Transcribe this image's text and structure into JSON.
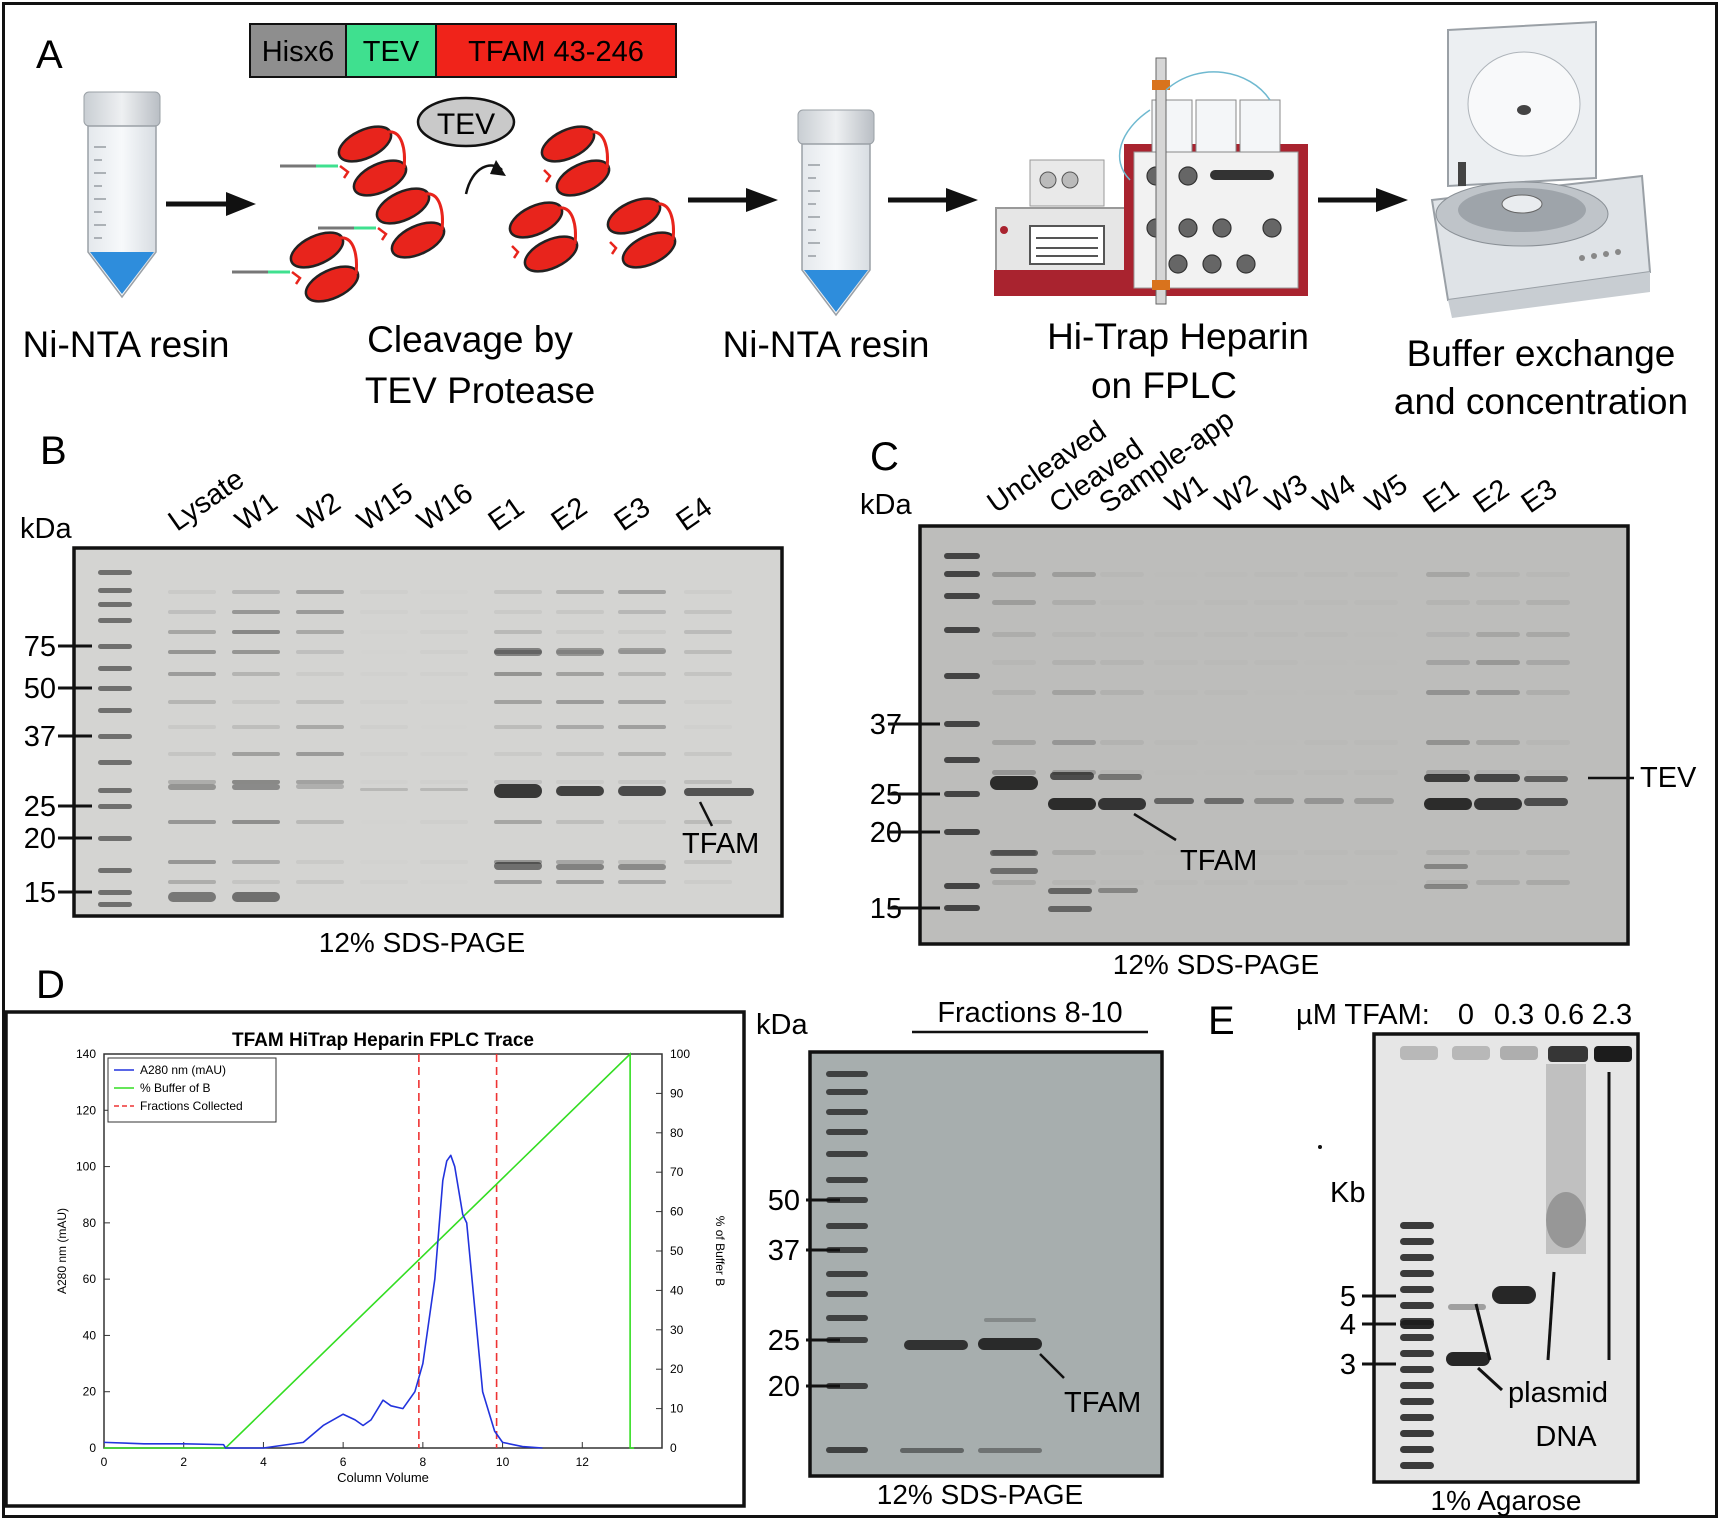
{
  "panels": {
    "a": "A",
    "b": "B",
    "c": "C",
    "d": "D",
    "e": "E"
  },
  "construct": {
    "his": "Hisx6",
    "tev": "TEV",
    "tfam": "TFAM 43-246",
    "colors": {
      "his": "#8e8e8e",
      "tev": "#3fe08f",
      "tfam": "#f0231a"
    }
  },
  "workflow": {
    "tev_bubble": "TEV",
    "steps": {
      "s1": "Ni-NTA resin",
      "s2a": "Cleavage by",
      "s2b": "TEV Protease",
      "s3": "Ni-NTA resin",
      "s4a": "Hi-Trap Heparin",
      "s4b": "on FPLC",
      "s5a": "Buffer exchange",
      "s5b": "and concentration"
    }
  },
  "gel_b": {
    "unit": "kDa",
    "lanes": [
      "Lysate",
      "W1",
      "W2",
      "W15",
      "W16",
      "E1",
      "E2",
      "E3",
      "E4"
    ],
    "markers": [
      "75",
      "50",
      "37",
      "25",
      "20",
      "15"
    ],
    "band": "TFAM",
    "caption": "12% SDS-PAGE"
  },
  "gel_c": {
    "unit": "kDa",
    "lanes": [
      "Uncleaved",
      "Cleaved",
      "Sample-app",
      "W1",
      "W2",
      "W3",
      "W4",
      "W5",
      "E1",
      "E2",
      "E3"
    ],
    "markers": [
      "37",
      "25",
      "20",
      "15"
    ],
    "band_tfam": "TFAM",
    "band_tev": "TEV",
    "caption": "12% SDS-PAGE"
  },
  "gel_d": {
    "unit": "kDa",
    "header": "Fractions 8-10",
    "markers": [
      "50",
      "37",
      "25",
      "20"
    ],
    "band": "TFAM",
    "caption": "12% SDS-PAGE"
  },
  "gel_e": {
    "conc_label": "µM TFAM:",
    "concs": [
      "0",
      "0.3",
      "0.6",
      "2.3"
    ],
    "unit": "Kb",
    "markers": [
      "5",
      "4",
      "3"
    ],
    "label_a": "plasmid",
    "label_b": "DNA",
    "caption": "1% Agarose"
  },
  "chart_data": {
    "type": "line",
    "title": "TFAM HiTrap Heparin FPLC Trace",
    "xlabel": "Column Volume",
    "ylabel_left": "A280 nm (mAU)",
    "ylabel_right": "% of Buffer B",
    "xlim": [
      0,
      14
    ],
    "ylim_left": [
      0,
      140
    ],
    "ylim_right": [
      0,
      100
    ],
    "xticks": [
      "0",
      "2",
      "4",
      "6",
      "8",
      "10",
      "12"
    ],
    "yticks_left": [
      "0",
      "20",
      "40",
      "60",
      "80",
      "100",
      "120",
      "140"
    ],
    "yticks_right": [
      "0",
      "10",
      "20",
      "30",
      "40",
      "50",
      "60",
      "70",
      "80",
      "90",
      "100"
    ],
    "legend": {
      "placement": "top-left",
      "entries": [
        "A280 nm (mAU)",
        "% Buffer of B",
        "Fractions Collected"
      ]
    },
    "colors": {
      "a280": "#2233dd",
      "buffer": "#33dd22",
      "fractions": "#ee3333"
    },
    "series": [
      {
        "name": "A280 nm (mAU)",
        "axis": "left",
        "x": [
          0,
          1,
          2,
          3,
          3.05,
          4,
          5,
          5.5,
          6,
          6.3,
          6.5,
          6.7,
          7,
          7.2,
          7.5,
          7.8,
          8,
          8.3,
          8.5,
          8.6,
          8.7,
          8.8,
          9,
          9.1,
          9.3,
          9.5,
          9.8,
          10,
          10.5,
          11
        ],
        "y": [
          2,
          1.5,
          1.5,
          1.2,
          0,
          0,
          2,
          8,
          12,
          10,
          8,
          10,
          17,
          15,
          14,
          20,
          30,
          60,
          95,
          102,
          104,
          100,
          83,
          80,
          50,
          20,
          6,
          2,
          0.5,
          0
        ]
      },
      {
        "name": "% Buffer of B",
        "axis": "right",
        "x": [
          0,
          3.05,
          13.2,
          13.2,
          13.3
        ],
        "y": [
          0,
          0,
          100,
          0,
          0
        ]
      }
    ],
    "fractions_collected": [
      7.9,
      9.85
    ]
  }
}
